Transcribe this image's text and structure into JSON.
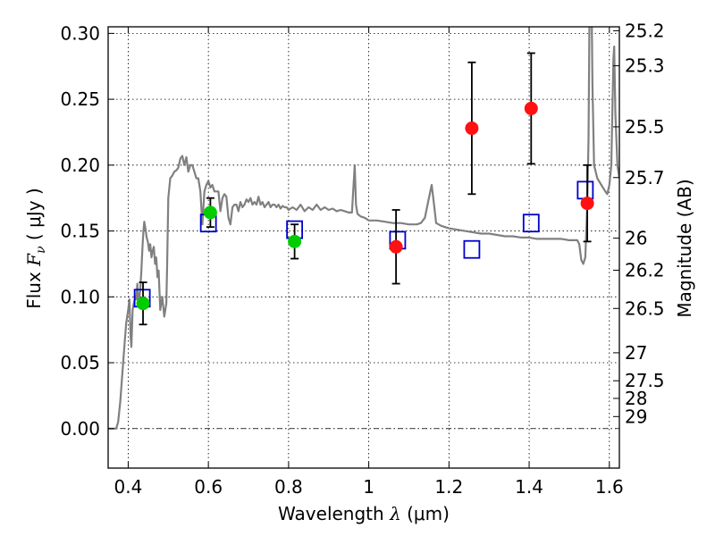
{
  "chart_data": {
    "type": "scatter",
    "xlabel": {
      "text": "Wavelength",
      "symbol": "λ",
      "unit_open": "(",
      "unit": "μm",
      "unit_close": ")"
    },
    "ylabel": {
      "text": "Flux",
      "symbol": "F",
      "subscript": "ν",
      "unit_open": "(",
      "unit": "μJy",
      "unit_close": ")"
    },
    "ylabel_right": "Magnitude (AB)",
    "xlim": [
      0.35,
      1.625
    ],
    "ylim": [
      -0.03,
      0.305
    ],
    "x_ticks": [
      {
        "value": 0.4,
        "label": "0.4"
      },
      {
        "value": 0.6,
        "label": "0.6"
      },
      {
        "value": 0.8,
        "label": "0.8"
      },
      {
        "value": 1.0,
        "label": "1"
      },
      {
        "value": 1.2,
        "label": "1.2"
      },
      {
        "value": 1.4,
        "label": "1.4"
      },
      {
        "value": 1.6,
        "label": "1.6"
      }
    ],
    "y_ticks": [
      {
        "value": 0.0,
        "label": "0.00"
      },
      {
        "value": 0.05,
        "label": "0.05"
      },
      {
        "value": 0.1,
        "label": "0.10"
      },
      {
        "value": 0.15,
        "label": "0.15"
      },
      {
        "value": 0.2,
        "label": "0.20"
      },
      {
        "value": 0.25,
        "label": "0.25"
      },
      {
        "value": 0.3,
        "label": "0.30"
      }
    ],
    "right_ticks": [
      {
        "mag": 25.2,
        "label": "25.2"
      },
      {
        "mag": 25.3,
        "label": "25.3"
      },
      {
        "mag": 25.5,
        "label": "25.5"
      },
      {
        "mag": 25.7,
        "label": "25.7"
      },
      {
        "mag": 26.0,
        "label": "26"
      },
      {
        "mag": 26.2,
        "label": "26.2"
      },
      {
        "mag": 26.5,
        "label": "26.5"
      },
      {
        "mag": 27.0,
        "label": "27"
      },
      {
        "mag": 27.5,
        "label": "27.5"
      },
      {
        "mag": 28.0,
        "label": "28"
      },
      {
        "mag": 29.0,
        "label": "29"
      }
    ],
    "grid": true,
    "colors": {
      "sed": "#808080",
      "optical": "#00cc00",
      "nir": "#ff1111",
      "model": "#0000cc",
      "errorbar": "#000000",
      "zero_line": "#000000"
    },
    "series": [
      {
        "kind": "line",
        "points": [
          [
            0.35,
            0.0
          ],
          [
            0.37,
            0.0
          ],
          [
            0.375,
            0.005
          ],
          [
            0.38,
            0.02
          ],
          [
            0.385,
            0.04
          ],
          [
            0.39,
            0.06
          ],
          [
            0.395,
            0.08
          ],
          [
            0.4,
            0.09
          ],
          [
            0.403,
            0.098
          ],
          [
            0.406,
            0.07
          ],
          [
            0.408,
            0.062
          ],
          [
            0.411,
            0.09
          ],
          [
            0.414,
            0.095
          ],
          [
            0.418,
            0.1
          ],
          [
            0.42,
            0.098
          ],
          [
            0.423,
            0.11
          ],
          [
            0.425,
            0.096
          ],
          [
            0.428,
            0.1
          ],
          [
            0.43,
            0.105
          ],
          [
            0.433,
            0.12
          ],
          [
            0.436,
            0.14
          ],
          [
            0.438,
            0.15
          ],
          [
            0.44,
            0.157
          ],
          [
            0.443,
            0.152
          ],
          [
            0.446,
            0.145
          ],
          [
            0.449,
            0.142
          ],
          [
            0.452,
            0.135
          ],
          [
            0.455,
            0.14
          ],
          [
            0.458,
            0.13
          ],
          [
            0.461,
            0.135
          ],
          [
            0.464,
            0.138
          ],
          [
            0.467,
            0.125
          ],
          [
            0.47,
            0.13
          ],
          [
            0.473,
            0.115
          ],
          [
            0.476,
            0.12
          ],
          [
            0.48,
            0.09
          ],
          [
            0.485,
            0.1
          ],
          [
            0.49,
            0.085
          ],
          [
            0.495,
            0.095
          ],
          [
            0.497,
            0.12
          ],
          [
            0.5,
            0.175
          ],
          [
            0.505,
            0.19
          ],
          [
            0.51,
            0.192
          ],
          [
            0.515,
            0.195
          ],
          [
            0.52,
            0.196
          ],
          [
            0.525,
            0.198
          ],
          [
            0.53,
            0.205
          ],
          [
            0.535,
            0.207
          ],
          [
            0.54,
            0.2
          ],
          [
            0.545,
            0.206
          ],
          [
            0.55,
            0.195
          ],
          [
            0.555,
            0.2
          ],
          [
            0.56,
            0.2
          ],
          [
            0.565,
            0.195
          ],
          [
            0.57,
            0.19
          ],
          [
            0.575,
            0.19
          ],
          [
            0.58,
            0.18
          ],
          [
            0.585,
            0.155
          ],
          [
            0.59,
            0.18
          ],
          [
            0.595,
            0.185
          ],
          [
            0.6,
            0.188
          ],
          [
            0.605,
            0.183
          ],
          [
            0.61,
            0.185
          ],
          [
            0.615,
            0.18
          ],
          [
            0.62,
            0.18
          ],
          [
            0.625,
            0.18
          ],
          [
            0.63,
            0.165
          ],
          [
            0.635,
            0.175
          ],
          [
            0.64,
            0.178
          ],
          [
            0.645,
            0.176
          ],
          [
            0.65,
            0.16
          ],
          [
            0.655,
            0.155
          ],
          [
            0.66,
            0.168
          ],
          [
            0.665,
            0.17
          ],
          [
            0.67,
            0.17
          ],
          [
            0.675,
            0.165
          ],
          [
            0.68,
            0.172
          ],
          [
            0.685,
            0.168
          ],
          [
            0.69,
            0.17
          ],
          [
            0.695,
            0.174
          ],
          [
            0.7,
            0.172
          ],
          [
            0.705,
            0.175
          ],
          [
            0.71,
            0.17
          ],
          [
            0.715,
            0.172
          ],
          [
            0.72,
            0.17
          ],
          [
            0.725,
            0.176
          ],
          [
            0.73,
            0.17
          ],
          [
            0.735,
            0.172
          ],
          [
            0.74,
            0.168
          ],
          [
            0.745,
            0.17
          ],
          [
            0.75,
            0.172
          ],
          [
            0.755,
            0.168
          ],
          [
            0.76,
            0.17
          ],
          [
            0.765,
            0.17
          ],
          [
            0.77,
            0.168
          ],
          [
            0.775,
            0.17
          ],
          [
            0.78,
            0.167
          ],
          [
            0.785,
            0.169
          ],
          [
            0.79,
            0.168
          ],
          [
            0.795,
            0.168
          ],
          [
            0.8,
            0.166
          ],
          [
            0.81,
            0.168
          ],
          [
            0.82,
            0.166
          ],
          [
            0.83,
            0.17
          ],
          [
            0.84,
            0.165
          ],
          [
            0.85,
            0.168
          ],
          [
            0.86,
            0.166
          ],
          [
            0.87,
            0.17
          ],
          [
            0.88,
            0.166
          ],
          [
            0.89,
            0.168
          ],
          [
            0.9,
            0.166
          ],
          [
            0.91,
            0.167
          ],
          [
            0.92,
            0.165
          ],
          [
            0.93,
            0.166
          ],
          [
            0.94,
            0.165
          ],
          [
            0.95,
            0.164
          ],
          [
            0.958,
            0.164
          ],
          [
            0.962,
            0.185
          ],
          [
            0.965,
            0.2
          ],
          [
            0.968,
            0.17
          ],
          [
            0.972,
            0.163
          ],
          [
            0.98,
            0.161
          ],
          [
            0.99,
            0.16
          ],
          [
            1.0,
            0.158
          ],
          [
            1.02,
            0.158
          ],
          [
            1.04,
            0.157
          ],
          [
            1.06,
            0.156
          ],
          [
            1.08,
            0.156
          ],
          [
            1.1,
            0.155
          ],
          [
            1.12,
            0.155
          ],
          [
            1.13,
            0.156
          ],
          [
            1.14,
            0.16
          ],
          [
            1.15,
            0.175
          ],
          [
            1.157,
            0.185
          ],
          [
            1.162,
            0.172
          ],
          [
            1.168,
            0.156
          ],
          [
            1.18,
            0.154
          ],
          [
            1.2,
            0.152
          ],
          [
            1.22,
            0.151
          ],
          [
            1.24,
            0.15
          ],
          [
            1.26,
            0.149
          ],
          [
            1.28,
            0.148
          ],
          [
            1.3,
            0.148
          ],
          [
            1.32,
            0.147
          ],
          [
            1.34,
            0.146
          ],
          [
            1.36,
            0.146
          ],
          [
            1.38,
            0.145
          ],
          [
            1.4,
            0.145
          ],
          [
            1.42,
            0.144
          ],
          [
            1.44,
            0.144
          ],
          [
            1.46,
            0.144
          ],
          [
            1.48,
            0.144
          ],
          [
            1.5,
            0.143
          ],
          [
            1.52,
            0.143
          ],
          [
            1.525,
            0.14
          ],
          [
            1.53,
            0.128
          ],
          [
            1.535,
            0.125
          ],
          [
            1.54,
            0.13
          ],
          [
            1.545,
            0.17
          ],
          [
            1.548,
            0.22
          ],
          [
            1.55,
            0.3
          ],
          [
            1.551,
            0.32
          ]
        ]
      },
      {
        "kind": "line",
        "points": [
          [
            1.556,
            0.32
          ],
          [
            1.558,
            0.26
          ],
          [
            1.562,
            0.2
          ],
          [
            1.57,
            0.19
          ],
          [
            1.58,
            0.185
          ],
          [
            1.59,
            0.18
          ],
          [
            1.595,
            0.178
          ],
          [
            1.6,
            0.185
          ],
          [
            1.605,
            0.2
          ],
          [
            1.61,
            0.28
          ],
          [
            1.612,
            0.29
          ],
          [
            1.615,
            0.24
          ],
          [
            1.62,
            0.2
          ],
          [
            1.625,
            0.19
          ]
        ]
      },
      {
        "kind": "markers-square",
        "points": [
          [
            0.435,
            0.099
          ],
          [
            0.6,
            0.156
          ],
          [
            0.815,
            0.151
          ],
          [
            1.072,
            0.143
          ],
          [
            1.257,
            0.136
          ],
          [
            1.405,
            0.156
          ],
          [
            1.54,
            0.181
          ]
        ]
      },
      {
        "kind": "markers-circle-errorbar",
        "points": [
          {
            "x": 0.437,
            "y": 0.095,
            "err": 0.016
          },
          {
            "x": 0.605,
            "y": 0.164,
            "err": 0.011
          },
          {
            "x": 0.815,
            "y": 0.142,
            "err": 0.013
          }
        ]
      },
      {
        "kind": "markers-circle-errorbar",
        "points": [
          {
            "x": 1.068,
            "y": 0.138,
            "err": 0.028
          },
          {
            "x": 1.257,
            "y": 0.228,
            "err": 0.05
          },
          {
            "x": 1.405,
            "y": 0.243,
            "err": 0.042
          },
          {
            "x": 1.545,
            "y": 0.171,
            "err": 0.029
          }
        ]
      }
    ]
  }
}
